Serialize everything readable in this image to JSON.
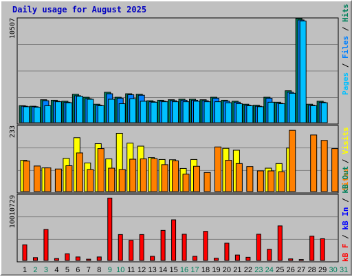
{
  "title": "Daily usage for August 2025",
  "colors": {
    "background": "#c0c0c0",
    "hits": "#00805c",
    "files": "#0080ff",
    "pages": "#00c0ff",
    "visits": "#ffff00",
    "sites": "#ff8000",
    "kbin": "#0000ff",
    "kbout": "#00805c",
    "kbf": "#ff0000",
    "weekday": "#000000",
    "weekend": "#00805c",
    "grid": "#808080"
  },
  "legends": {
    "top": [
      {
        "text": "Pages",
        "color": "#00c0ff"
      },
      {
        "text": " / ",
        "color": "#000000"
      },
      {
        "text": "Files",
        "color": "#0080ff"
      },
      {
        "text": " / ",
        "color": "#000000"
      },
      {
        "text": "Hits",
        "color": "#00805c"
      }
    ],
    "middle": [
      {
        "text": "Sites",
        "color": "#ff8000"
      },
      {
        "text": " / ",
        "color": "#000000"
      },
      {
        "text": "Visits",
        "color": "#ffff00"
      }
    ],
    "bottom": [
      {
        "text": "kB F",
        "color": "#ff0000"
      },
      {
        "text": " / ",
        "color": "#000000"
      },
      {
        "text": "kB In",
        "color": "#0000ff"
      },
      {
        "text": " / ",
        "color": "#000000"
      },
      {
        "text": "kB Out",
        "color": "#00805c"
      }
    ]
  },
  "chart_data": {
    "type": "bar",
    "title": "Daily usage for August 2025",
    "x": [
      "1",
      "2",
      "3",
      "4",
      "5",
      "6",
      "7",
      "8",
      "9",
      "10",
      "11",
      "12",
      "13",
      "14",
      "15",
      "16",
      "17",
      "18",
      "19",
      "20",
      "21",
      "22",
      "23",
      "24",
      "25",
      "26",
      "27",
      "28",
      "29",
      "30",
      "31"
    ],
    "weekend_days": [
      "2",
      "3",
      "9",
      "10",
      "16",
      "17",
      "23",
      "24",
      "30",
      "31"
    ],
    "panels": [
      {
        "name": "top",
        "ymax_label": "10507",
        "ymax": 10507,
        "series": [
          {
            "name": "Hits",
            "values": [
              1700,
              1650,
              2300,
              2250,
              2150,
              2850,
              2550,
              1850,
              3050,
              2550,
              2900,
              2850,
              2200,
              2250,
              2300,
              2350,
              2350,
              2300,
              2550,
              2250,
              2150,
              1850,
              1750,
              2550,
              2050,
              3200,
              10450,
              1850,
              2150,
              0,
              0
            ]
          },
          {
            "name": "Files",
            "values": [
              1650,
              1600,
              2200,
              2150,
              2050,
              2700,
              2400,
              1750,
              2900,
              2450,
              2800,
              2750,
              2100,
              2150,
              2200,
              2250,
              2250,
              2200,
              2450,
              2150,
              2050,
              1750,
              1650,
              2450,
              1950,
              3050,
              10300,
              1750,
              2050,
              0,
              0
            ]
          },
          {
            "name": "Pages",
            "values": [
              1600,
              1550,
              1700,
              2100,
              2000,
              2650,
              2350,
              1700,
              2350,
              1900,
              2400,
              2150,
              2050,
              2100,
              2100,
              2100,
              2150,
              2100,
              2100,
              2000,
              1900,
              1700,
              1600,
              2050,
              1900,
              2950,
              10200,
              1700,
              2000,
              0,
              0
            ]
          }
        ]
      },
      {
        "name": "middle",
        "ymax_label": "233",
        "ymax": 233,
        "series": [
          {
            "name": "Visits",
            "values": [
              115,
              0,
              87,
              0,
              122,
              198,
              105,
              176,
              120,
              214,
              178,
              167,
              125,
              118,
              117,
              85,
              118,
              0,
              0,
              159,
              152,
              0,
              0,
              86,
              103,
              160,
              0,
              0,
              0,
              0,
              0
            ]
          },
          {
            "name": "Sites",
            "values": [
              112,
              94,
              87,
              83,
              95,
              142,
              81,
              158,
              86,
              81,
              119,
              120,
              121,
              99,
              113,
              64,
              93,
              70,
              164,
              115,
              103,
              92,
              76,
              76,
              73,
              225,
              0,
              208,
              188,
              158,
              0
            ]
          }
        ]
      },
      {
        "name": "bottom",
        "ymax_label": "10010729",
        "ymax": 10010729,
        "series": [
          {
            "name": "kB F",
            "values": [
              2450000,
              450000,
              4850000,
              300000,
              1050000,
              550000,
              200000,
              550000,
              9750000,
              4050000,
              3150000,
              4050000,
              650000,
              4700000,
              6350000,
              4100000,
              650000,
              4550000,
              350000,
              2700000,
              850000,
              500000,
              4100000,
              1750000,
              5400000,
              250000,
              150000,
              3800000,
              3400000,
              0,
              0
            ]
          }
        ]
      }
    ]
  }
}
